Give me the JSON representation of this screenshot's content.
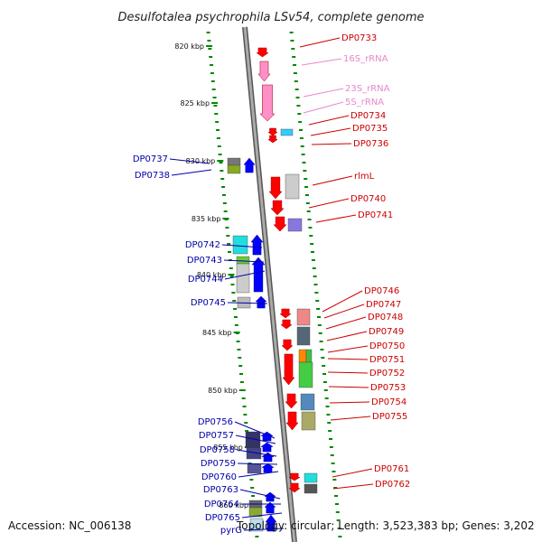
{
  "title": "Desulfotalea psychrophila LSv54, complete genome",
  "footer": {
    "accession": "Accession: NC_006138",
    "info": "Topology: circular; Length: 3,523,383 bp; Genes: 3,202"
  },
  "kbp_labels": [
    "820 kbp",
    "825 kbp",
    "830 kbp",
    "835 kbp",
    "840 kbp",
    "845 kbp",
    "850 kbp",
    "855 kbp",
    "860 kbp"
  ],
  "left_genes": [
    "DP0737",
    "DP0738",
    "DP0742",
    "DP0743",
    "DP0744",
    "DP0745",
    "DP0756",
    "DP0757",
    "DP0758",
    "DP0759",
    "DP0760",
    "DP0763",
    "DP0764",
    "DP0765",
    "pyrG"
  ],
  "right_genes": [
    "DP0733",
    "16S_rRNA",
    "23S_rRNA",
    "5S_rRNA",
    "DP0734",
    "DP0735",
    "DP0736",
    "rlmL",
    "DP0740",
    "DP0741",
    "DP0746",
    "DP0747",
    "DP0748",
    "DP0749",
    "DP0750",
    "DP0751",
    "DP0752",
    "DP0753",
    "DP0754",
    "DP0755",
    "DP0761",
    "DP0762"
  ],
  "colors": {
    "forward_gene": "#ff0000",
    "reverse_gene": "#0000ff",
    "rrna": "#ff8fc8",
    "label_forward": "#cc0000",
    "label_reverse": "#0000aa",
    "label_rrna": "#e888c8",
    "tick": "#008800",
    "backbone": "#888888"
  }
}
